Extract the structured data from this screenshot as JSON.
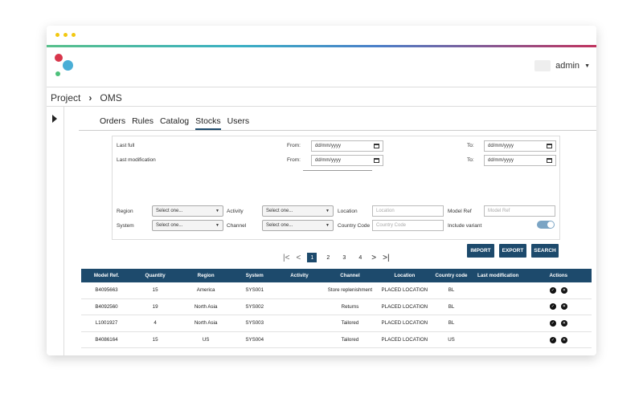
{
  "user": {
    "name": "admin"
  },
  "breadcrumb": {
    "project": "Project",
    "sep": "›",
    "current": "OMS"
  },
  "tabs": [
    {
      "label": "Orders"
    },
    {
      "label": "Rules"
    },
    {
      "label": "Catalog"
    },
    {
      "label": "Stocks",
      "active": true
    },
    {
      "label": "Users"
    }
  ],
  "filters": {
    "last_full": "Last full",
    "last_modification": "Last modification",
    "from_label": "From:",
    "to_label": "To:",
    "date_placeholder": "dd/mm/yyyy",
    "region_label": "Region",
    "system_label": "System",
    "activity_label": "Activity",
    "channel_label": "Channel",
    "location_label": "Location",
    "country_code_label": "Country Code",
    "model_ref_label": "Model Ref",
    "include_variant_label": "Include variant",
    "select_placeholder": "Select one...",
    "location_placeholder": "Location",
    "country_code_placeholder": "Country Code",
    "model_ref_placeholder": "Model Ref",
    "include_variant_on": true
  },
  "buttons": {
    "import": "IMPORT",
    "export": "EXPORT",
    "search": "SEARCH"
  },
  "pager": {
    "pages": [
      "1",
      "2",
      "3",
      "4"
    ],
    "current": "1"
  },
  "table": {
    "headers": [
      "Model Ref.",
      "Quantity",
      "Region",
      "System",
      "Activity",
      "Channel",
      "Location",
      "Country code",
      "Last modification",
      "Actions"
    ],
    "rows": [
      {
        "model_ref": "B4095663",
        "quantity": "15",
        "region": "America",
        "system": "SYS001",
        "activity": "",
        "channel": "Store replenishment",
        "location": "PLACED LOCATION",
        "country": "BL",
        "last_mod": ""
      },
      {
        "model_ref": "B4092560",
        "quantity": "19",
        "region": "North Asia",
        "system": "SYS002",
        "activity": "",
        "channel": "Returns",
        "location": "PLACED LOCATION",
        "country": "BL",
        "last_mod": ""
      },
      {
        "model_ref": "L1001927",
        "quantity": "4",
        "region": "North Asia",
        "system": "SYS003",
        "activity": "",
        "channel": "Tailored",
        "location": "PLACED LOCATION",
        "country": "BL",
        "last_mod": ""
      },
      {
        "model_ref": "B4086164",
        "quantity": "15",
        "region": "US",
        "system": "SYS004",
        "activity": "",
        "channel": "Tailored",
        "location": "PLACED LOCATION",
        "country": "US",
        "last_mod": ""
      }
    ]
  }
}
